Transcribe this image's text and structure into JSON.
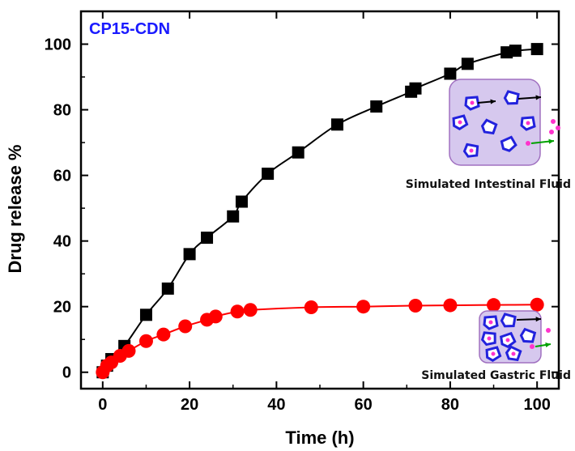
{
  "chart_data": {
    "type": "scatter",
    "title": "CP15-CDN",
    "xlabel": "Time (h)",
    "ylabel": "Drug release %",
    "xlim": [
      -5,
      105
    ],
    "ylim": [
      -5,
      110
    ],
    "xticks": [
      0,
      20,
      40,
      60,
      80,
      100
    ],
    "yticks": [
      0,
      20,
      40,
      60,
      80,
      100
    ],
    "grid": false,
    "series": [
      {
        "marker": "square",
        "color": "#000000",
        "x": [
          0,
          1,
          2,
          5,
          10,
          15,
          20,
          24,
          30,
          32,
          38,
          45,
          54,
          63,
          71,
          72,
          80,
          84,
          93,
          95,
          100
        ],
        "y": [
          0,
          2,
          4,
          8,
          17.5,
          25.5,
          36,
          41,
          47.5,
          52,
          60.5,
          67,
          75.5,
          81,
          85.5,
          86.5,
          91,
          94,
          97.5,
          98,
          98.5
        ]
      },
      {
        "marker": "circle",
        "color": "#ff0000",
        "x": [
          0,
          1,
          2,
          4,
          6,
          10,
          14,
          19,
          24,
          26,
          31,
          34,
          48,
          60,
          72,
          80,
          90,
          100
        ],
        "y": [
          0,
          2,
          3,
          5,
          6.5,
          9.5,
          11.5,
          14,
          16,
          17,
          18.5,
          19,
          19.8,
          20,
          20.3,
          20.4,
          20.5,
          20.6
        ]
      }
    ],
    "annotations": [
      {
        "text": "Simulated Intestinal Fluid"
      },
      {
        "text": "Simulated Gastric Fluid"
      }
    ]
  },
  "colors": {
    "axis": "#000000",
    "title": "#1a1aff",
    "inset_fill": "#d6c8ee",
    "inset_stroke": "#a070c0",
    "particle": "#2222dd",
    "drug": "#ff33cc",
    "arrow_black": "#000000",
    "arrow_green": "#00a000"
  }
}
